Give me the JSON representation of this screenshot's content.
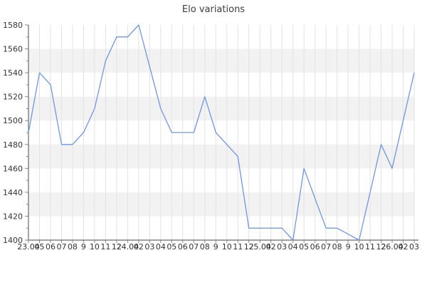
{
  "chart_data": {
    "type": "line",
    "title": "Elo variations",
    "series_name": "Elo",
    "legend": "none",
    "categories": [
      "23.04",
      "05",
      "06",
      "07",
      "08",
      "9",
      "10",
      "11",
      "12",
      "24.04",
      "02",
      "03",
      "04",
      "05",
      "06",
      "07",
      "08",
      "9",
      "10",
      "11",
      "12",
      "25.04",
      "02",
      "03",
      "04",
      "05",
      "06",
      "07",
      "08",
      "9",
      "10",
      "11",
      "12",
      "26.04",
      "02",
      "03"
    ],
    "values": [
      1490,
      1540,
      1530,
      1480,
      1480,
      1490,
      1510,
      1550,
      1570,
      1570,
      1580,
      1545,
      1510,
      1490,
      1490,
      1490,
      1520,
      1490,
      1480,
      1470,
      1410,
      1410,
      1410,
      1410,
      1400,
      1460,
      1435,
      1410,
      1410,
      1405,
      1400,
      1440,
      1480,
      1460,
      1500,
      1540
    ],
    "ylim": [
      1400,
      1580
    ],
    "ytick_step": 20,
    "ytick_minor_step": 10,
    "xlabel": "",
    "ylabel": "",
    "grid": "vertical gridlines at every category tick; alternating horizontal gray bands",
    "bands": [
      [
        1420,
        1440
      ],
      [
        1460,
        1480
      ],
      [
        1500,
        1520
      ],
      [
        1540,
        1560
      ]
    ],
    "colors": {
      "line": "#7097e0",
      "band": "#f2f2f2",
      "gridline": "#e3e3e3",
      "spine": "#6b6b6b",
      "tick": "#8a8a8a",
      "label_text": "#333333",
      "title_text": "#3d3d3d",
      "background": "#ffffff"
    }
  }
}
